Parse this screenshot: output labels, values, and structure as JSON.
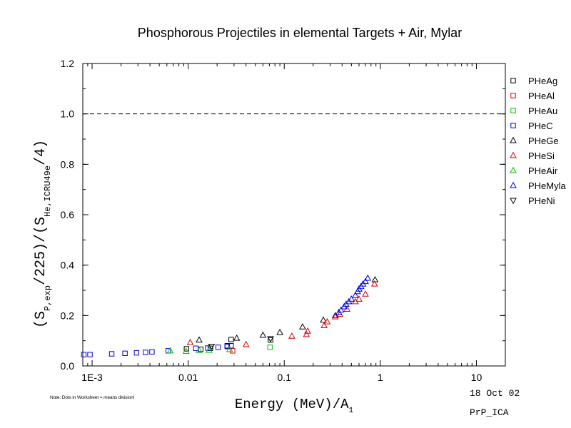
{
  "chart_data": {
    "type": "scatter",
    "title": "Phosphorous Projectiles in elemental Targets + Air, Mylar",
    "xlabel": "Energy (MeV)/A",
    "xlabel_sub": "1",
    "ylabel_parts": [
      "(S",
      "P,exp",
      "/225)/(S",
      "He,ICRU49e",
      "/4)"
    ],
    "x_scale": "log",
    "xlim": [
      0.0008,
      20
    ],
    "ylim": [
      0.0,
      1.2
    ],
    "x_ticks": [
      {
        "value": 0.001,
        "label": "1E-3"
      },
      {
        "value": 0.01,
        "label": "0.01"
      },
      {
        "value": 0.1,
        "label": "0.1"
      },
      {
        "value": 1,
        "label": "1"
      },
      {
        "value": 10,
        "label": "10"
      }
    ],
    "y_ticks": [
      {
        "value": 0.0,
        "label": "0.0"
      },
      {
        "value": 0.2,
        "label": "0.2"
      },
      {
        "value": 0.4,
        "label": "0.4"
      },
      {
        "value": 0.6,
        "label": "0.6"
      },
      {
        "value": 0.8,
        "label": "0.8"
      },
      {
        "value": 1.0,
        "label": "1.0"
      },
      {
        "value": 1.2,
        "label": "1.2"
      }
    ],
    "reference_line": {
      "y": 1.0,
      "style": "dashed"
    },
    "legend_position": "right",
    "series": [
      {
        "name": "PHeAg",
        "marker": "square",
        "color": "#000000",
        "points": [
          [
            0.0096,
            0.068
          ],
          [
            0.0135,
            0.066
          ],
          [
            0.017,
            0.07
          ],
          [
            0.0255,
            0.08
          ],
          [
            0.028,
            0.105
          ],
          [
            0.072,
            0.103
          ]
        ]
      },
      {
        "name": "PHeAl",
        "marker": "square",
        "color": "#e00000",
        "points": [
          [
            0.029,
            0.06
          ]
        ]
      },
      {
        "name": "PHeAu",
        "marker": "square",
        "color": "#00c000",
        "points": [
          [
            0.071,
            0.074
          ]
        ]
      },
      {
        "name": "PHeC",
        "marker": "square",
        "color": "#0000e0",
        "points": [
          [
            0.00082,
            0.045
          ],
          [
            0.00095,
            0.045
          ],
          [
            0.0016,
            0.048
          ],
          [
            0.0022,
            0.05
          ],
          [
            0.0029,
            0.052
          ],
          [
            0.0036,
            0.054
          ],
          [
            0.0042,
            0.056
          ],
          [
            0.0062,
            0.06
          ],
          [
            0.012,
            0.07
          ],
          [
            0.016,
            0.071
          ],
          [
            0.0205,
            0.074
          ],
          [
            0.0255,
            0.077
          ],
          [
            0.028,
            0.08
          ]
        ]
      },
      {
        "name": "PHeGe",
        "marker": "triangle-up",
        "color": "#000000",
        "points": [
          [
            0.013,
            0.103
          ],
          [
            0.032,
            0.11
          ],
          [
            0.06,
            0.122
          ],
          [
            0.09,
            0.133
          ],
          [
            0.155,
            0.155
          ],
          [
            0.255,
            0.182
          ],
          [
            0.88,
            0.342
          ]
        ]
      },
      {
        "name": "PHeSi",
        "marker": "triangle-up",
        "color": "#e00000",
        "points": [
          [
            0.0105,
            0.093
          ],
          [
            0.04,
            0.085
          ],
          [
            0.12,
            0.118
          ],
          [
            0.17,
            0.125
          ],
          [
            0.175,
            0.138
          ],
          [
            0.26,
            0.16
          ],
          [
            0.28,
            0.175
          ],
          [
            0.34,
            0.195
          ],
          [
            0.38,
            0.205
          ],
          [
            0.45,
            0.225
          ],
          [
            0.55,
            0.255
          ],
          [
            0.6,
            0.265
          ],
          [
            0.7,
            0.285
          ],
          [
            0.87,
            0.325
          ]
        ]
      },
      {
        "name": "PHeAir",
        "marker": "triangle-up",
        "color": "#00c000",
        "points": [
          [
            0.0065,
            0.06
          ],
          [
            0.0095,
            0.058
          ],
          [
            0.013,
            0.062
          ],
          [
            0.0165,
            0.062
          ],
          [
            0.027,
            0.065
          ]
        ]
      },
      {
        "name": "PHeMyla",
        "marker": "triangle-up",
        "color": "#0000e0",
        "points": [
          [
            0.34,
            0.2
          ],
          [
            0.37,
            0.212
          ],
          [
            0.39,
            0.222
          ],
          [
            0.42,
            0.235
          ],
          [
            0.44,
            0.245
          ],
          [
            0.47,
            0.255
          ],
          [
            0.5,
            0.265
          ],
          [
            0.55,
            0.28
          ],
          [
            0.58,
            0.295
          ],
          [
            0.6,
            0.305
          ],
          [
            0.63,
            0.315
          ],
          [
            0.66,
            0.325
          ],
          [
            0.7,
            0.335
          ],
          [
            0.74,
            0.348
          ]
        ]
      },
      {
        "name": "PHeNi",
        "marker": "triangle-down",
        "color": "#000000",
        "points": [
          [
            0.0175,
            0.078
          ],
          [
            0.072,
            0.108
          ]
        ]
      }
    ]
  },
  "footer": {
    "note": "Note: Dots in Worksheet = means division!",
    "date": "18 Oct 02",
    "code": "PrP_ICA"
  }
}
